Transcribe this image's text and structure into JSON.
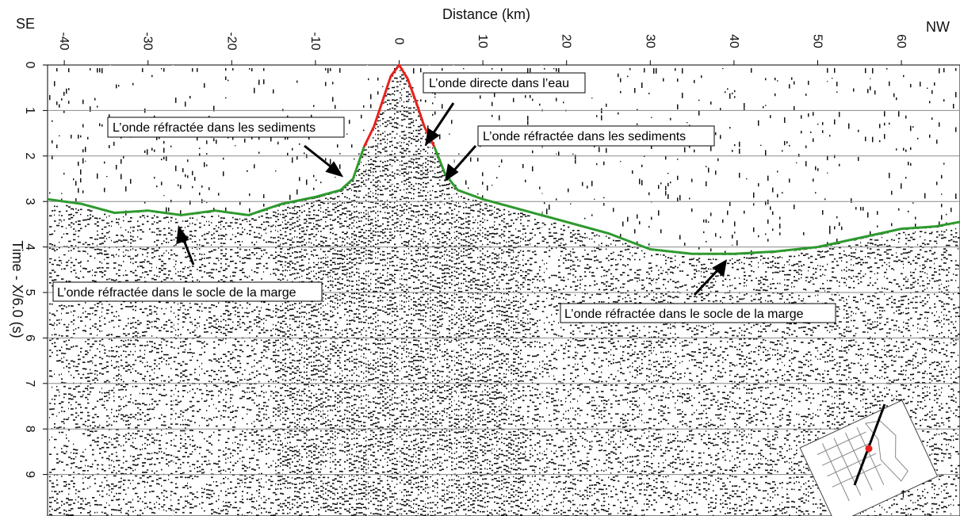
{
  "figure": {
    "dir_left": "SE",
    "dir_right": "NW",
    "xlabel": "Distance (km)",
    "ylabel": "Time - X/6.0 (s)"
  },
  "annotations": [
    {
      "text": "L’onde directe dans l’eau"
    },
    {
      "text": "L’onde réfractée dans les sediments"
    },
    {
      "text": "L’onde réfractée dans les sediments"
    },
    {
      "text": "L’onde réfractée dans le socle de la marge"
    },
    {
      "text": "L’onde réfractée dans le socle de la marge"
    }
  ],
  "chart_data": {
    "type": "line",
    "xlabel": "Distance (km)",
    "ylabel": "Time - X/6.0 (s)",
    "xlim": [
      -42,
      67
    ],
    "ylim": [
      10,
      0
    ],
    "x_ticks": [
      -40,
      -30,
      -20,
      -10,
      0,
      10,
      20,
      30,
      40,
      50,
      60
    ],
    "y_ticks": [
      0,
      1,
      2,
      3,
      4,
      5,
      6,
      7,
      8,
      9
    ],
    "grid": "horizontal",
    "series": [
      {
        "color": "#e8201c",
        "x": [
          -4.2,
          -3,
          -2,
          -1,
          0,
          1,
          2,
          3,
          4.2
        ],
        "y": [
          1.8,
          1.35,
          0.8,
          0.25,
          0.0,
          0.3,
          0.8,
          1.35,
          1.8
        ]
      },
      {
        "color": "#2e9a2e",
        "x": [
          -42,
          -38,
          -34,
          -30,
          -26,
          -22,
          -18,
          -14,
          -10,
          -7,
          -5.5,
          -4.2
        ],
        "y": [
          2.95,
          3.05,
          3.25,
          3.2,
          3.3,
          3.2,
          3.3,
          3.05,
          2.9,
          2.75,
          2.5,
          1.8
        ]
      },
      {
        "color": "#2e9a2e",
        "x": [
          4.2,
          5.5,
          7,
          10,
          15,
          20,
          25,
          30,
          35,
          40,
          45,
          50,
          55,
          60,
          64,
          67
        ],
        "y": [
          1.8,
          2.4,
          2.75,
          2.95,
          3.2,
          3.45,
          3.7,
          4.05,
          4.15,
          4.15,
          4.1,
          4.0,
          3.8,
          3.6,
          3.55,
          3.45
        ]
      }
    ]
  }
}
